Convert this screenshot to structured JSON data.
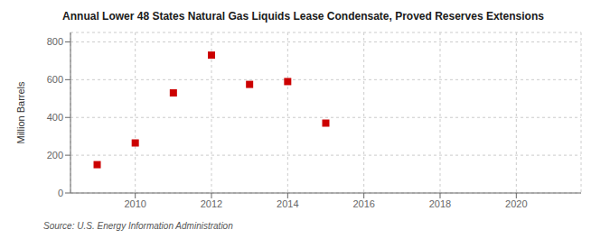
{
  "chart_data": {
    "type": "scatter",
    "title": "Annual Lower 48 States Natural Gas Liquids Lease Condensate, Proved Reserves Extensions",
    "ylabel": "Million Barrels",
    "annotation": "Source: U.S. Energy Information Administration",
    "x": [
      2009,
      2010,
      2011,
      2012,
      2013,
      2014,
      2015
    ],
    "values": [
      150,
      265,
      530,
      730,
      575,
      590,
      370
    ],
    "color": "#cc0000",
    "marker": "square",
    "xlim": [
      2008.3,
      2021.7
    ],
    "ylim": [
      0,
      850
    ],
    "xticks": [
      2010,
      2012,
      2014,
      2016,
      2018,
      2020
    ],
    "yticks": [
      0,
      200,
      400,
      600,
      800
    ],
    "grid": true
  }
}
